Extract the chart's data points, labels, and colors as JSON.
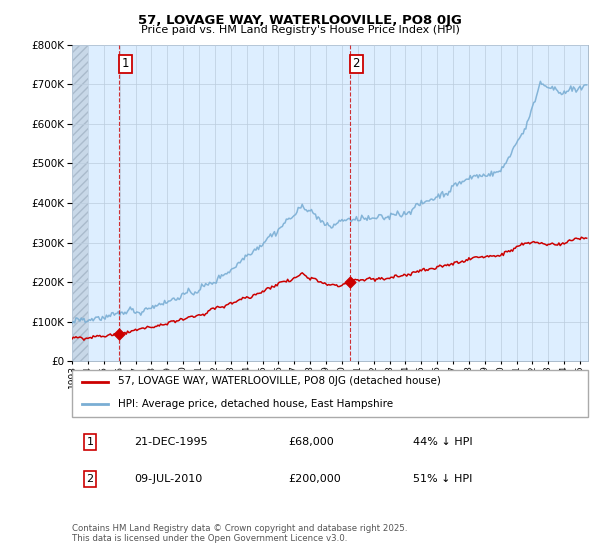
{
  "title": "57, LOVAGE WAY, WATERLOOVILLE, PO8 0JG",
  "subtitle": "Price paid vs. HM Land Registry's House Price Index (HPI)",
  "legend_line1": "57, LOVAGE WAY, WATERLOOVILLE, PO8 0JG (detached house)",
  "legend_line2": "HPI: Average price, detached house, East Hampshire",
  "transaction1_label": "1",
  "transaction1_date": "21-DEC-1995",
  "transaction1_price": "£68,000",
  "transaction1_hpi": "44% ↓ HPI",
  "transaction1_year": 1995.97,
  "transaction1_value": 68000,
  "transaction2_label": "2",
  "transaction2_date": "09-JUL-2010",
  "transaction2_price": "£200,000",
  "transaction2_hpi": "51% ↓ HPI",
  "transaction2_year": 2010.52,
  "transaction2_value": 200000,
  "price_color": "#cc0000",
  "hpi_color": "#7aaed4",
  "chart_bg_color": "#ddeeff",
  "hatch_facecolor": "#c8d8e8",
  "background_color": "#ffffff",
  "grid_color": "#bbccdd",
  "ylabel_max": 800000,
  "footnote": "Contains HM Land Registry data © Crown copyright and database right 2025.\nThis data is licensed under the Open Government Licence v3.0."
}
